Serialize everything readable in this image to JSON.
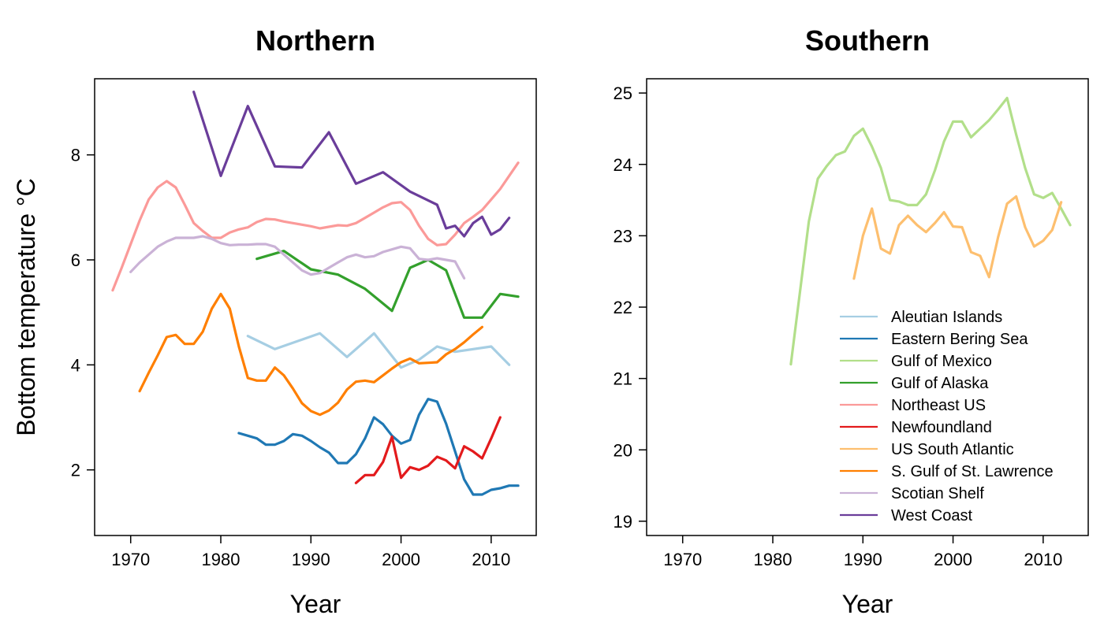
{
  "chart_data": [
    {
      "type": "line",
      "title": "Northern",
      "xlabel": "Year",
      "ylabel": "Bottom temperature °C",
      "xlim": [
        1966,
        2015
      ],
      "ylim": [
        0.75,
        9.45
      ],
      "xticks": [
        1970,
        1980,
        1990,
        2000,
        2010
      ],
      "yticks": [
        2,
        4,
        6,
        8
      ],
      "grid": false,
      "series": [
        {
          "name": "Aleutian Islands",
          "color": "#a6cee3",
          "x": [
            1983,
            1986,
            1991,
            1994,
            1997,
            2000,
            2002,
            2004,
            2006,
            2010,
            2012
          ],
          "y": [
            4.55,
            4.3,
            4.6,
            4.15,
            4.6,
            3.95,
            4.1,
            4.35,
            4.25,
            4.35,
            4.0
          ]
        },
        {
          "name": "Eastern Bering Sea",
          "color": "#1f78b4",
          "x": [
            1982,
            1983,
            1984,
            1985,
            1986,
            1987,
            1988,
            1989,
            1990,
            1991,
            1992,
            1993,
            1994,
            1995,
            1996,
            1997,
            1998,
            1999,
            2000,
            2001,
            2002,
            2003,
            2004,
            2005,
            2006,
            2007,
            2008,
            2009,
            2010,
            2011,
            2012,
            2013
          ],
          "y": [
            2.7,
            2.65,
            2.6,
            2.48,
            2.48,
            2.55,
            2.68,
            2.65,
            2.55,
            2.43,
            2.33,
            2.13,
            2.13,
            2.3,
            2.6,
            3.0,
            2.87,
            2.65,
            2.5,
            2.57,
            3.05,
            3.35,
            3.3,
            2.88,
            2.35,
            1.82,
            1.53,
            1.53,
            1.62,
            1.65,
            1.7,
            1.7
          ]
        },
        {
          "name": "Gulf of Mexico",
          "color": "#b2df8a",
          "x": [],
          "y": []
        },
        {
          "name": "Gulf of Alaska",
          "color": "#33a02c",
          "x": [
            1984,
            1987,
            1990,
            1993,
            1996,
            1999,
            2001,
            2003,
            2005,
            2007,
            2009,
            2011,
            2013
          ],
          "y": [
            6.02,
            6.17,
            5.82,
            5.72,
            5.45,
            5.03,
            5.85,
            6.0,
            5.8,
            4.9,
            4.9,
            5.35,
            5.3
          ]
        },
        {
          "name": "Northeast US",
          "color": "#fb9a99",
          "x": [
            1968,
            1969,
            1970,
            1971,
            1972,
            1973,
            1974,
            1975,
            1976,
            1977,
            1978,
            1979,
            1980,
            1981,
            1982,
            1983,
            1984,
            1985,
            1986,
            1987,
            1988,
            1989,
            1990,
            1991,
            1992,
            1993,
            1994,
            1995,
            1996,
            1997,
            1998,
            1999,
            2000,
            2001,
            2002,
            2003,
            2004,
            2005,
            2006,
            2007,
            2008,
            2009,
            2010,
            2011,
            2012,
            2013
          ],
          "y": [
            5.42,
            5.85,
            6.3,
            6.75,
            7.15,
            7.38,
            7.5,
            7.38,
            7.05,
            6.7,
            6.55,
            6.42,
            6.42,
            6.52,
            6.58,
            6.62,
            6.72,
            6.78,
            6.77,
            6.73,
            6.7,
            6.67,
            6.64,
            6.6,
            6.63,
            6.66,
            6.65,
            6.7,
            6.8,
            6.9,
            7.0,
            7.08,
            7.1,
            6.95,
            6.65,
            6.4,
            6.28,
            6.3,
            6.48,
            6.7,
            6.82,
            6.95,
            7.15,
            7.35,
            7.6,
            7.85
          ]
        },
        {
          "name": "Newfoundland",
          "color": "#e31a1c",
          "x": [
            1995,
            1996,
            1997,
            1998,
            1999,
            2000,
            2001,
            2002,
            2003,
            2004,
            2005,
            2006,
            2007,
            2008,
            2009,
            2010,
            2011
          ],
          "y": [
            1.75,
            1.9,
            1.9,
            2.15,
            2.63,
            1.85,
            2.05,
            2.0,
            2.08,
            2.25,
            2.18,
            2.03,
            2.45,
            2.35,
            2.22,
            2.6,
            3.0
          ]
        },
        {
          "name": "US South Atlantic",
          "color": "#fdbf6f",
          "x": [],
          "y": []
        },
        {
          "name": "S. Gulf of St. Lawrence",
          "color": "#ff7f00",
          "x": [
            1971,
            1972,
            1973,
            1974,
            1975,
            1976,
            1977,
            1978,
            1979,
            1980,
            1981,
            1982,
            1983,
            1984,
            1985,
            1986,
            1987,
            1988,
            1989,
            1990,
            1991,
            1992,
            1993,
            1994,
            1995,
            1996,
            1997,
            1998,
            1999,
            2000,
            2001,
            2002,
            2003,
            2004,
            2005,
            2006,
            2007,
            2008,
            2009
          ],
          "y": [
            3.5,
            3.85,
            4.18,
            4.53,
            4.57,
            4.4,
            4.4,
            4.63,
            5.07,
            5.35,
            5.07,
            4.35,
            3.75,
            3.7,
            3.7,
            3.95,
            3.8,
            3.55,
            3.27,
            3.12,
            3.05,
            3.13,
            3.28,
            3.53,
            3.68,
            3.7,
            3.67,
            3.8,
            3.93,
            4.05,
            4.12,
            4.03,
            4.04,
            4.05,
            4.2,
            4.3,
            4.43,
            4.58,
            4.72
          ]
        },
        {
          "name": "Scotian Shelf",
          "color": "#cab2d6",
          "x": [
            1970,
            1971,
            1972,
            1973,
            1974,
            1975,
            1976,
            1977,
            1978,
            1979,
            1980,
            1981,
            1982,
            1983,
            1984,
            1985,
            1986,
            1987,
            1988,
            1989,
            1990,
            1991,
            1992,
            1993,
            1994,
            1995,
            1996,
            1997,
            1998,
            1999,
            2000,
            2001,
            2002,
            2003,
            2004,
            2005,
            2006,
            2007
          ],
          "y": [
            5.77,
            5.95,
            6.1,
            6.25,
            6.35,
            6.42,
            6.42,
            6.42,
            6.45,
            6.4,
            6.32,
            6.28,
            6.29,
            6.29,
            6.3,
            6.3,
            6.25,
            6.1,
            5.95,
            5.8,
            5.72,
            5.75,
            5.85,
            5.95,
            6.05,
            6.1,
            6.05,
            6.07,
            6.15,
            6.2,
            6.25,
            6.22,
            6.02,
            6.0,
            6.03,
            6.0,
            5.97,
            5.65
          ]
        },
        {
          "name": "West Coast",
          "color": "#6a3d9a",
          "x": [
            1977,
            1980,
            1983,
            1986,
            1989,
            1992,
            1995,
            1998,
            2001,
            2004,
            2005,
            2006,
            2007,
            2008,
            2009,
            2010,
            2011,
            2012
          ],
          "y": [
            9.2,
            7.6,
            8.93,
            7.78,
            7.76,
            8.43,
            7.45,
            7.67,
            7.3,
            7.05,
            6.6,
            6.65,
            6.45,
            6.7,
            6.82,
            6.48,
            6.58,
            6.8
          ]
        }
      ]
    },
    {
      "type": "line",
      "title": "Southern",
      "xlabel": "Year",
      "ylabel": "",
      "xlim": [
        1966,
        2015
      ],
      "ylim": [
        18.8,
        25.2
      ],
      "xticks": [
        1970,
        1980,
        1990,
        2000,
        2010
      ],
      "yticks": [
        19,
        20,
        21,
        22,
        23,
        24,
        25
      ],
      "grid": false,
      "legend_position": "bottom-right",
      "series": [
        {
          "name": "Aleutian Islands",
          "color": "#a6cee3",
          "x": [],
          "y": []
        },
        {
          "name": "Eastern Bering Sea",
          "color": "#1f78b4",
          "x": [],
          "y": []
        },
        {
          "name": "Gulf of Mexico",
          "color": "#b2df8a",
          "x": [
            1982,
            1983,
            1984,
            1985,
            1986,
            1987,
            1988,
            1989,
            1990,
            1991,
            1992,
            1993,
            1994,
            1995,
            1996,
            1997,
            1998,
            1999,
            2000,
            2001,
            2002,
            2003,
            2004,
            2005,
            2006,
            2007,
            2008,
            2009,
            2010,
            2011,
            2012,
            2013
          ],
          "y": [
            21.2,
            22.2,
            23.2,
            23.8,
            23.98,
            24.13,
            24.18,
            24.4,
            24.5,
            24.25,
            23.95,
            23.5,
            23.48,
            23.43,
            23.43,
            23.58,
            23.92,
            24.32,
            24.6,
            24.6,
            24.38,
            24.5,
            24.62,
            24.77,
            24.93,
            24.42,
            23.95,
            23.58,
            23.53,
            23.6,
            23.38,
            23.15
          ]
        },
        {
          "name": "Gulf of Alaska",
          "color": "#33a02c",
          "x": [],
          "y": []
        },
        {
          "name": "Northeast US",
          "color": "#fb9a99",
          "x": [],
          "y": []
        },
        {
          "name": "Newfoundland",
          "color": "#e31a1c",
          "x": [],
          "y": []
        },
        {
          "name": "US South Atlantic",
          "color": "#fdbf6f",
          "x": [
            1989,
            1990,
            1991,
            1992,
            1993,
            1994,
            1995,
            1996,
            1997,
            1998,
            1999,
            2000,
            2001,
            2002,
            2003,
            2004,
            2005,
            2006,
            2007,
            2008,
            2009,
            2010,
            2011,
            2012
          ],
          "y": [
            22.4,
            23.0,
            23.38,
            22.82,
            22.75,
            23.15,
            23.28,
            23.15,
            23.05,
            23.18,
            23.33,
            23.13,
            23.12,
            22.77,
            22.72,
            22.42,
            22.98,
            23.45,
            23.55,
            23.12,
            22.85,
            22.93,
            23.08,
            23.47
          ]
        },
        {
          "name": "S. Gulf of St. Lawrence",
          "color": "#ff7f00",
          "x": [],
          "y": []
        },
        {
          "name": "Scotian Shelf",
          "color": "#cab2d6",
          "x": [],
          "y": []
        },
        {
          "name": "West Coast",
          "color": "#6a3d9a",
          "x": [],
          "y": []
        }
      ]
    }
  ]
}
